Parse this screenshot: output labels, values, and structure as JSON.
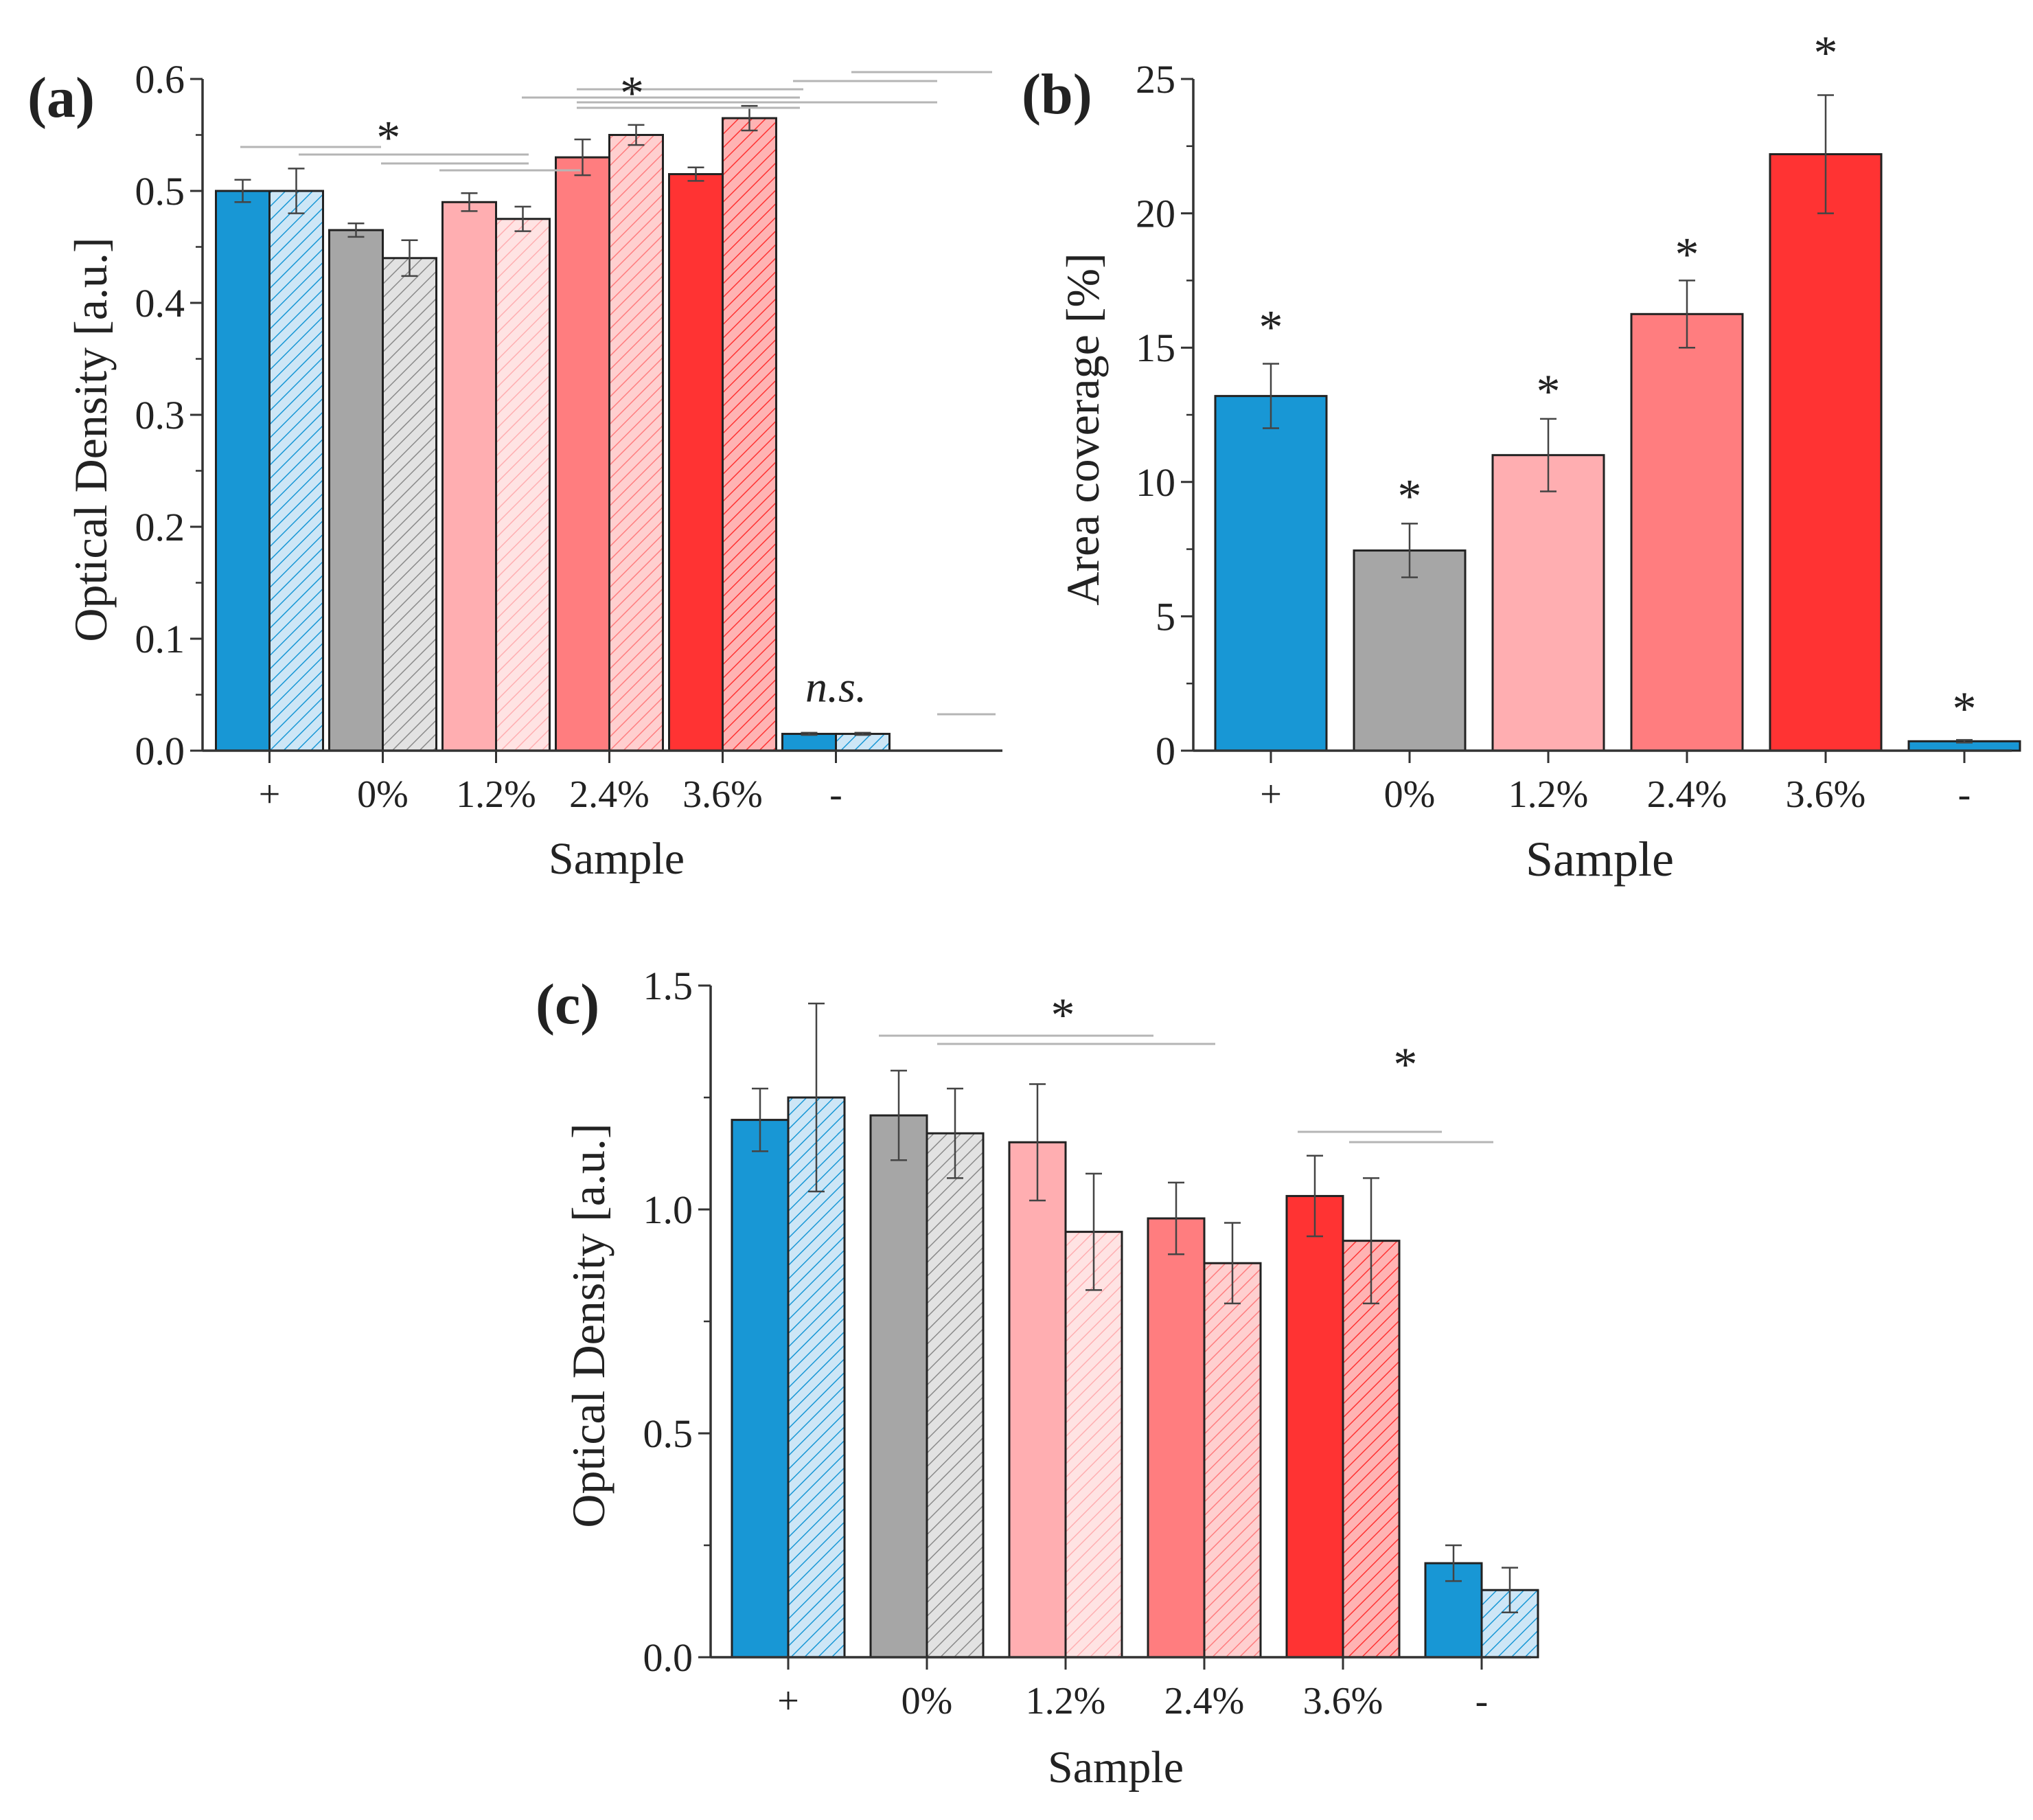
{
  "colors": {
    "positive": "#1897d5",
    "positive_light": "#cde6f6",
    "zero": "#a6a6a6",
    "zero_light": "#e2e2e2",
    "pct12": "#ffaeb1",
    "pct12_light": "#ffe3e3",
    "pct24": "#ff7d7f",
    "pct24_light": "#ffcfcf",
    "pct36": "#ff3333",
    "pct36_light": "#ffb3b3",
    "axis": "#333333",
    "bracket": "#b5b5b5",
    "hatch": "#8a8a8a"
  },
  "chart_data": [
    {
      "id": "a",
      "panel_label": "(a)",
      "type": "bar",
      "xlabel": "Sample",
      "ylabel": "Optical Density [a.u.]",
      "ylim": [
        0,
        0.6
      ],
      "yticks": [
        "0.0",
        "0.1",
        "0.2",
        "0.3",
        "0.4",
        "0.5",
        "0.6"
      ],
      "categories": [
        "+",
        "0%",
        "1.2%",
        "2.4%",
        "3.6%",
        "-"
      ],
      "series": [
        {
          "name": "solid",
          "values": [
            0.5,
            0.465,
            0.49,
            0.53,
            0.515,
            0.015
          ],
          "errors": [
            0.01,
            0.006,
            0.008,
            0.016,
            0.006,
            0.001
          ]
        },
        {
          "name": "hatched",
          "values": [
            0.5,
            0.44,
            0.475,
            0.55,
            0.565,
            0.015
          ],
          "errors": [
            0.02,
            0.016,
            0.011,
            0.009,
            0.011,
            0.001
          ]
        }
      ],
      "annotations": [
        {
          "text": "*",
          "x": 1.05,
          "y": 0.558
        },
        {
          "text": "*",
          "x": 3.2,
          "y": 0.598
        },
        {
          "text": "n.s.",
          "x": 5.0,
          "y": 0.056,
          "italic": true
        }
      ]
    },
    {
      "id": "b",
      "panel_label": "(b)",
      "type": "bar",
      "xlabel": "Sample",
      "ylabel": "Area coverage [%]",
      "ylim": [
        0,
        25
      ],
      "yticks": [
        "0",
        "5",
        "10",
        "15",
        "20",
        "25"
      ],
      "categories": [
        "+",
        "0%",
        "1.2%",
        "2.4%",
        "3.6%",
        "-"
      ],
      "series": [
        {
          "name": "solid",
          "values": [
            13.2,
            7.45,
            11.0,
            16.25,
            22.2,
            0.35
          ],
          "errors": [
            1.2,
            1.0,
            1.35,
            1.25,
            2.2,
            0.05
          ]
        }
      ],
      "annotations": [
        {
          "text": "*",
          "x": 0,
          "y": 16.2
        },
        {
          "text": "*",
          "x": 1,
          "y": 9.9
        },
        {
          "text": "*",
          "x": 2,
          "y": 13.8
        },
        {
          "text": "*",
          "x": 3,
          "y": 18.9
        },
        {
          "text": "*",
          "x": 4,
          "y": 26.4
        },
        {
          "text": "*",
          "x": 5,
          "y": 2.0
        }
      ]
    },
    {
      "id": "c",
      "panel_label": "(c)",
      "type": "bar",
      "xlabel": "Sample",
      "ylabel": "Optical Density [a.u.]",
      "ylim": [
        0,
        1.5
      ],
      "yticks": [
        "0.0",
        "0.5",
        "1.0",
        "1.5"
      ],
      "categories": [
        "+",
        "0%",
        "1.2%",
        "2.4%",
        "3.6%",
        "-"
      ],
      "series": [
        {
          "name": "solid",
          "values": [
            1.2,
            1.21,
            1.15,
            0.98,
            1.03,
            0.21
          ],
          "errors": [
            0.07,
            0.1,
            0.13,
            0.08,
            0.09,
            0.04
          ]
        },
        {
          "name": "hatched",
          "values": [
            1.25,
            1.17,
            0.95,
            0.88,
            0.93,
            0.15
          ],
          "errors": [
            0.21,
            0.1,
            0.13,
            0.09,
            0.14,
            0.05
          ]
        }
      ],
      "annotations": [
        {
          "text": "*",
          "x": 1.98,
          "y": 1.46
        },
        {
          "text": "*",
          "x": 4.45,
          "y": 1.35
        }
      ]
    }
  ]
}
